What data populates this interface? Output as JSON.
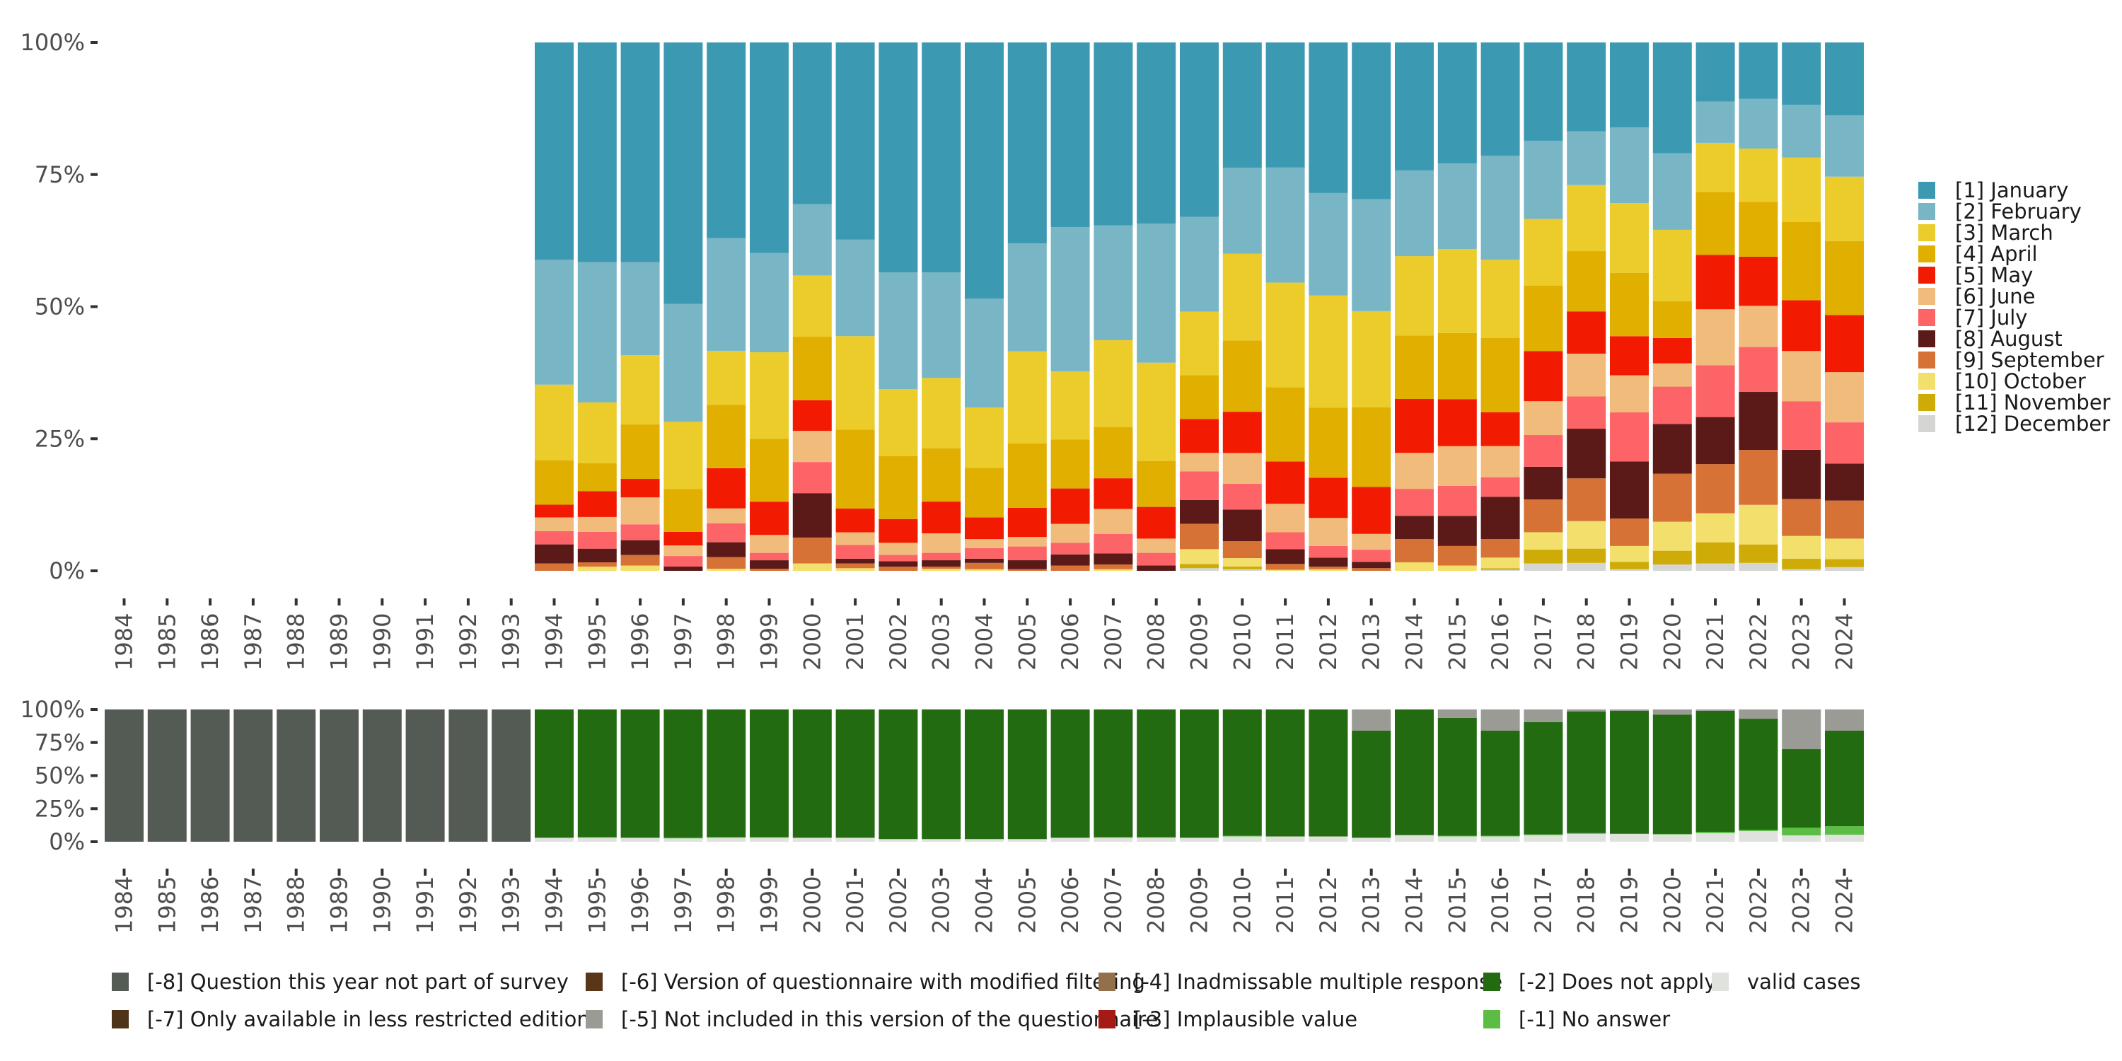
{
  "chart_data": [
    {
      "type": "bar",
      "stacked": true,
      "normalized": true,
      "title": "",
      "xlabel": "",
      "ylabel": "",
      "ylim": [
        0,
        1
      ],
      "y_ticks": [
        "0%",
        "25%",
        "50%",
        "75%",
        "100%"
      ],
      "legend_position": "right",
      "categories": [
        "1984",
        "1985",
        "1986",
        "1987",
        "1988",
        "1989",
        "1990",
        "1991",
        "1992",
        "1993",
        "1994",
        "1995",
        "1996",
        "1997",
        "1998",
        "1999",
        "2000",
        "2001",
        "2002",
        "2003",
        "2004",
        "2005",
        "2006",
        "2007",
        "2008",
        "2009",
        "2010",
        "2011",
        "2012",
        "2013",
        "2014",
        "2015",
        "2016",
        "2017",
        "2018",
        "2019",
        "2020",
        "2021",
        "2022",
        "2023",
        "2024"
      ],
      "series": [
        {
          "name": "[1] January",
          "color": "#3c99b2",
          "values": [
            null,
            null,
            null,
            null,
            null,
            null,
            null,
            null,
            null,
            null,
            41.1,
            41.6,
            41.6,
            49.5,
            37.0,
            39.9,
            30.6,
            37.4,
            43.5,
            43.5,
            48.5,
            38.0,
            35.0,
            34.6,
            34.3,
            33.0,
            23.7,
            23.7,
            28.5,
            29.7,
            24.2,
            22.9,
            21.4,
            18.6,
            16.8,
            16.1,
            21.0,
            11.2,
            10.7,
            11.8,
            13.8
          ]
        },
        {
          "name": "[2] February",
          "color": "#78b6c6",
          "values": [
            null,
            null,
            null,
            null,
            null,
            null,
            null,
            null,
            null,
            null,
            23.6,
            26.6,
            17.6,
            22.3,
            21.3,
            18.8,
            13.5,
            18.3,
            22.1,
            20.0,
            20.6,
            20.4,
            27.3,
            21.7,
            26.3,
            17.9,
            16.3,
            21.8,
            19.4,
            21.2,
            16.2,
            16.2,
            19.7,
            14.8,
            10.2,
            14.3,
            14.5,
            7.8,
            9.4,
            10.0,
            11.6
          ]
        },
        {
          "name": "[3] March",
          "color": "#ebcc2a",
          "values": [
            null,
            null,
            null,
            null,
            null,
            null,
            null,
            null,
            null,
            null,
            14.3,
            11.5,
            13.1,
            12.7,
            10.2,
            16.4,
            11.6,
            17.7,
            12.7,
            13.3,
            11.4,
            17.4,
            12.9,
            16.4,
            18.6,
            12.0,
            16.4,
            19.8,
            21.2,
            18.2,
            15.0,
            15.9,
            14.8,
            12.6,
            12.5,
            13.2,
            13.5,
            9.3,
            10.1,
            12.2,
            12.2
          ]
        },
        {
          "name": "[4] April",
          "color": "#e1af00",
          "values": [
            null,
            null,
            null,
            null,
            null,
            null,
            null,
            null,
            null,
            null,
            8.4,
            5.3,
            10.3,
            8.1,
            12.0,
            11.9,
            12.0,
            15.0,
            11.9,
            10.1,
            9.4,
            12.2,
            9.3,
            9.7,
            8.7,
            8.3,
            13.5,
            14.1,
            13.3,
            15.1,
            12.0,
            12.5,
            14.0,
            12.4,
            11.4,
            12.0,
            7.0,
            11.9,
            10.4,
            14.8,
            14.0
          ]
        },
        {
          "name": "[5] May",
          "color": "#f21a00",
          "values": [
            null,
            null,
            null,
            null,
            null,
            null,
            null,
            null,
            null,
            null,
            2.4,
            4.9,
            3.5,
            2.6,
            7.6,
            6.3,
            5.8,
            4.5,
            4.5,
            6.0,
            4.1,
            5.5,
            6.7,
            5.8,
            6.0,
            6.4,
            7.8,
            8.0,
            7.6,
            8.9,
            10.2,
            8.9,
            6.4,
            9.5,
            8.0,
            7.4,
            4.8,
            10.3,
            9.3,
            9.6,
            10.8
          ]
        },
        {
          "name": "[6] June",
          "color": "#f1bb7b",
          "values": [
            null,
            null,
            null,
            null,
            null,
            null,
            null,
            null,
            null,
            null,
            2.6,
            2.8,
            5.1,
            2.0,
            2.8,
            3.4,
            5.9,
            2.4,
            2.3,
            3.7,
            1.7,
            1.8,
            3.6,
            4.7,
            2.7,
            3.5,
            5.8,
            5.4,
            5.3,
            3.0,
            6.8,
            7.5,
            5.9,
            6.4,
            8.1,
            7.0,
            4.4,
            10.6,
            7.8,
            9.5,
            9.5
          ]
        },
        {
          "name": "[7] July",
          "color": "#fd6467",
          "values": [
            null,
            null,
            null,
            null,
            null,
            null,
            null,
            null,
            null,
            null,
            2.5,
            3.2,
            3.0,
            2.0,
            3.6,
            1.4,
            5.9,
            2.6,
            1.2,
            1.4,
            2.0,
            2.6,
            2.2,
            3.7,
            2.4,
            5.4,
            4.9,
            3.2,
            2.2,
            2.3,
            5.1,
            5.7,
            3.7,
            6.0,
            6.1,
            9.3,
            7.1,
            9.8,
            8.5,
            9.2,
            7.8
          ]
        },
        {
          "name": "[8] August",
          "color": "#5b1a18",
          "values": [
            null,
            null,
            null,
            null,
            null,
            null,
            null,
            null,
            null,
            null,
            3.6,
            2.6,
            2.8,
            0.8,
            2.8,
            1.6,
            8.4,
            0.9,
            1.0,
            1.2,
            0.8,
            1.7,
            2.1,
            2.1,
            1.0,
            4.5,
            6.0,
            2.8,
            1.7,
            1.2,
            4.4,
            5.7,
            8.0,
            6.2,
            9.4,
            10.8,
            9.4,
            8.9,
            11.0,
            9.3,
            7.0
          ]
        },
        {
          "name": "[9] September",
          "color": "#d67236",
          "values": [
            null,
            null,
            null,
            null,
            null,
            null,
            null,
            null,
            null,
            null,
            1.4,
            0.8,
            2.0,
            0,
            2.2,
            0.4,
            4.9,
            0.9,
            0.8,
            0.4,
            1.2,
            0.3,
            1.0,
            0.9,
            0,
            4.8,
            3.2,
            1.1,
            0.5,
            0.5,
            4.4,
            3.7,
            3.5,
            6.2,
            8.1,
            5.2,
            9.1,
            9.3,
            10.4,
            7.0,
            7.2
          ]
        },
        {
          "name": "[10] October",
          "color": "#f3df6c",
          "values": [
            null,
            null,
            null,
            null,
            null,
            null,
            null,
            null,
            null,
            null,
            0,
            0.8,
            1.0,
            0,
            0.4,
            0,
            1.4,
            0.5,
            0,
            0.4,
            0.3,
            0,
            0,
            0.3,
            0,
            2.8,
            1.6,
            0.2,
            0.3,
            0,
            1.6,
            1.0,
            2.0,
            3.3,
            5.2,
            3.0,
            5.5,
            5.5,
            7.5,
            4.3,
            3.9
          ]
        },
        {
          "name": "[11] November",
          "color": "#ceab07",
          "values": [
            null,
            null,
            null,
            null,
            null,
            null,
            null,
            null,
            null,
            null,
            0,
            0,
            0,
            0,
            0,
            0,
            0,
            0,
            0,
            0,
            0,
            0,
            0,
            0,
            0,
            0.8,
            0.5,
            0,
            0,
            0,
            0,
            0,
            0.3,
            2.6,
            2.7,
            1.4,
            2.6,
            4.0,
            3.5,
            2.0,
            1.5
          ]
        },
        {
          "name": "[12] December",
          "color": "#d5d5d3",
          "values": [
            null,
            null,
            null,
            null,
            null,
            null,
            null,
            null,
            null,
            null,
            0,
            0,
            0,
            0,
            0,
            0,
            0,
            0,
            0,
            0,
            0,
            0,
            0,
            0,
            0,
            0.5,
            0.3,
            0,
            0,
            0,
            0,
            0,
            0.2,
            1.4,
            1.5,
            0.3,
            1.2,
            1.4,
            1.5,
            0.3,
            0.7
          ]
        }
      ]
    },
    {
      "type": "bar",
      "stacked": true,
      "normalized": true,
      "title": "",
      "xlabel": "",
      "ylabel": "",
      "ylim": [
        0,
        1
      ],
      "y_ticks": [
        "0%",
        "25%",
        "50%",
        "75%",
        "100%"
      ],
      "legend_position": "bottom",
      "categories": [
        "1984",
        "1985",
        "1986",
        "1987",
        "1988",
        "1989",
        "1990",
        "1991",
        "1992",
        "1993",
        "1994",
        "1995",
        "1996",
        "1997",
        "1998",
        "1999",
        "2000",
        "2001",
        "2002",
        "2003",
        "2004",
        "2005",
        "2006",
        "2007",
        "2008",
        "2009",
        "2010",
        "2011",
        "2012",
        "2013",
        "2014",
        "2015",
        "2016",
        "2017",
        "2018",
        "2019",
        "2020",
        "2021",
        "2022",
        "2023",
        "2024"
      ],
      "series": [
        {
          "name": "valid cases",
          "color": "#e0e2de",
          "values": [
            0,
            0,
            0,
            0,
            0,
            0,
            0,
            0,
            0,
            0,
            3,
            3,
            3,
            2.5,
            3,
            3,
            3,
            3,
            2,
            2,
            2,
            2,
            3,
            3,
            3,
            3,
            4,
            4,
            4,
            3,
            5,
            4,
            4,
            5,
            6,
            6,
            5.5,
            6.5,
            8,
            4.8,
            5.3
          ]
        },
        {
          "name": "[-1] No answer",
          "color": "#5bbd43",
          "values": [
            0,
            0,
            0,
            0,
            0,
            0,
            0,
            0,
            0,
            0,
            0,
            0.5,
            0,
            0.5,
            0.5,
            0.5,
            0,
            0,
            0,
            0,
            0,
            0,
            0,
            0.5,
            0.5,
            0,
            0.5,
            0,
            0,
            0,
            0,
            0.5,
            0.5,
            0.5,
            0.5,
            0,
            0.4,
            1,
            1,
            5.9,
            6.4
          ]
        },
        {
          "name": "[-2] Does not apply",
          "color": "#226b10",
          "values": [
            0,
            0,
            0,
            0,
            0,
            0,
            0,
            0,
            0,
            0,
            97,
            96.5,
            97,
            97,
            96.5,
            96.5,
            97,
            97,
            98,
            98,
            98,
            98,
            97,
            96.5,
            96.5,
            97,
            95.5,
            96,
            96,
            81,
            95,
            89.1,
            79.5,
            84.9,
            91.9,
            93,
            90.1,
            91.5,
            84,
            59.4,
            72.3
          ]
        },
        {
          "name": "[-3] Implausible value",
          "color": "#a51a14",
          "values": [
            0,
            0,
            0,
            0,
            0,
            0,
            0,
            0,
            0,
            0,
            0,
            0,
            0,
            0,
            0,
            0,
            0,
            0,
            0,
            0,
            0,
            0,
            0,
            0,
            0,
            0,
            0,
            0,
            0,
            0,
            0,
            0,
            0,
            0,
            0,
            0,
            0,
            0,
            0,
            0,
            0
          ]
        },
        {
          "name": "[-4] Inadmissable multiple response",
          "color": "#91704b",
          "values": [
            0,
            0,
            0,
            0,
            0,
            0,
            0,
            0,
            0,
            0,
            0,
            0,
            0,
            0,
            0,
            0,
            0,
            0,
            0,
            0,
            0,
            0,
            0,
            0,
            0,
            0,
            0,
            0,
            0,
            0,
            0,
            0,
            0,
            0,
            0,
            0,
            0,
            0,
            0,
            0,
            0
          ]
        },
        {
          "name": "[-5] Not included in this version of the questionnaire",
          "color": "#999b94",
          "values": [
            0,
            0,
            0,
            0,
            0,
            0,
            0,
            0,
            0,
            0,
            0,
            0,
            0,
            0,
            0,
            0,
            0,
            0,
            0,
            0,
            0,
            0,
            0,
            0,
            0,
            0,
            0,
            0,
            0,
            16,
            0,
            6.4,
            16,
            9.6,
            1.6,
            1,
            4,
            1,
            7,
            30,
            16
          ]
        },
        {
          "name": "[-6] Version of questionnaire with modified filtering",
          "color": "#5a3619",
          "values": [
            0,
            0,
            0,
            0,
            0,
            0,
            0,
            0,
            0,
            0,
            0,
            0,
            0,
            0,
            0,
            0,
            0,
            0,
            0,
            0,
            0,
            0,
            0,
            0,
            0,
            0,
            0,
            0,
            0,
            0,
            0,
            0,
            0,
            0,
            0,
            0,
            0,
            0,
            0,
            0,
            0
          ]
        },
        {
          "name": "[-7] Only available in less restricted edition",
          "color": "#4e3318",
          "values": [
            0,
            0,
            0,
            0,
            0,
            0,
            0,
            0,
            0,
            0,
            0,
            0,
            0,
            0,
            0,
            0,
            0,
            0,
            0,
            0,
            0,
            0,
            0,
            0,
            0,
            0,
            0,
            0,
            0,
            0,
            0,
            0,
            0,
            0,
            0,
            0,
            0,
            0,
            0,
            0,
            0
          ]
        },
        {
          "name": "[-8] Question this year not part of survey",
          "color": "#545a54",
          "values": [
            100,
            100,
            100,
            100,
            100,
            100,
            100,
            100,
            100,
            100,
            0,
            0,
            0,
            0,
            0,
            0,
            0,
            0,
            0,
            0,
            0,
            0,
            0,
            0,
            0,
            0,
            0,
            0,
            0,
            0,
            0,
            0,
            0,
            0,
            0,
            0,
            0,
            0,
            0,
            0,
            0
          ]
        }
      ]
    }
  ],
  "bottom_legend": [
    {
      "label": "[-8] Question this year not part of survey",
      "color": "#545a54"
    },
    {
      "label": "[-7] Only available in less restricted edition",
      "color": "#4e3318"
    },
    {
      "label": "[-6] Version of questionnaire with modified filtering",
      "color": "#5a3619"
    },
    {
      "label": "[-5] Not included in this version of the questionnaire",
      "color": "#999b94"
    },
    {
      "label": "[-4] Inadmissable multiple response",
      "color": "#91704b"
    },
    {
      "label": "[-3] Implausible value",
      "color": "#a51a14"
    },
    {
      "label": "[-2] Does not apply",
      "color": "#226b10"
    },
    {
      "label": "[-1] No answer",
      "color": "#5bbd43"
    },
    {
      "label": "valid cases",
      "color": "#e0e2de"
    }
  ]
}
